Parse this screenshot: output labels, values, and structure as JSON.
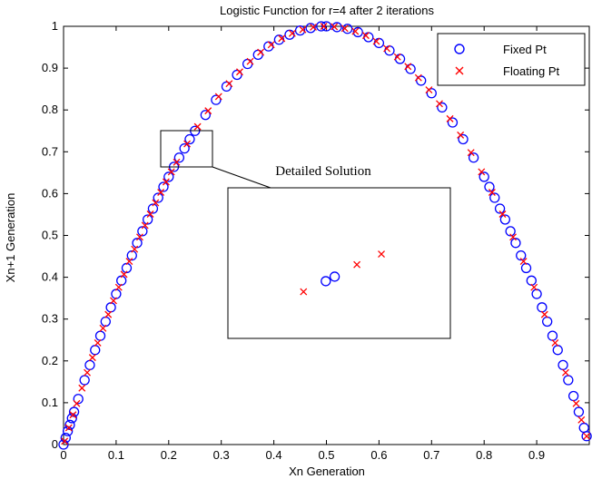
{
  "chart_data": {
    "type": "scatter",
    "title": "Logistic Function for r=4 after 2 iterations",
    "xlabel": "Xn Generation",
    "ylabel": "Xn+1 Generation",
    "xlim": [
      0,
      1
    ],
    "ylim": [
      0,
      1
    ],
    "x_ticks": [
      "0",
      "0.1",
      "0.2",
      "0.3",
      "0.4",
      "0.5",
      "0.6",
      "0.7",
      "0.8",
      "0.9"
    ],
    "y_ticks": [
      "0",
      "0.1",
      "0.2",
      "0.3",
      "0.4",
      "0.5",
      "0.6",
      "0.7",
      "0.8",
      "0.9",
      "1"
    ],
    "legend_position": "top-right",
    "grid": false,
    "series": [
      {
        "name": "Fixed Pt",
        "marker": "circle",
        "color": "#0000ff",
        "x": [
          0.0,
          0.004,
          0.008,
          0.012,
          0.016,
          0.02,
          0.028,
          0.04,
          0.05,
          0.06,
          0.07,
          0.08,
          0.09,
          0.1,
          0.11,
          0.12,
          0.13,
          0.14,
          0.15,
          0.16,
          0.17,
          0.18,
          0.19,
          0.2,
          0.21,
          0.22,
          0.23,
          0.24,
          0.25,
          0.27,
          0.29,
          0.31,
          0.33,
          0.35,
          0.37,
          0.39,
          0.41,
          0.43,
          0.45,
          0.47,
          0.49,
          0.5,
          0.52,
          0.54,
          0.56,
          0.58,
          0.6,
          0.62,
          0.64,
          0.66,
          0.68,
          0.7,
          0.72,
          0.74,
          0.76,
          0.78,
          0.8,
          0.81,
          0.82,
          0.83,
          0.84,
          0.85,
          0.86,
          0.87,
          0.88,
          0.89,
          0.9,
          0.91,
          0.92,
          0.93,
          0.94,
          0.95,
          0.96,
          0.97,
          0.98,
          0.99,
          0.995
        ],
        "y": [
          0.0,
          0.016,
          0.032,
          0.047,
          0.063,
          0.078,
          0.109,
          0.154,
          0.19,
          0.226,
          0.26,
          0.294,
          0.328,
          0.36,
          0.392,
          0.422,
          0.452,
          0.482,
          0.51,
          0.538,
          0.564,
          0.59,
          0.616,
          0.64,
          0.664,
          0.686,
          0.708,
          0.73,
          0.75,
          0.788,
          0.824,
          0.856,
          0.884,
          0.91,
          0.932,
          0.952,
          0.968,
          0.98,
          0.99,
          0.996,
          1.0,
          1.0,
          0.998,
          0.994,
          0.986,
          0.974,
          0.96,
          0.942,
          0.922,
          0.898,
          0.87,
          0.84,
          0.806,
          0.77,
          0.73,
          0.686,
          0.64,
          0.616,
          0.59,
          0.564,
          0.538,
          0.51,
          0.482,
          0.452,
          0.422,
          0.392,
          0.36,
          0.328,
          0.294,
          0.26,
          0.226,
          0.19,
          0.154,
          0.116,
          0.078,
          0.04,
          0.02
        ]
      },
      {
        "name": "Floating Pt",
        "marker": "x",
        "color": "#ff0000",
        "x": [
          0.002,
          0.01,
          0.018,
          0.025,
          0.035,
          0.045,
          0.055,
          0.065,
          0.075,
          0.085,
          0.095,
          0.105,
          0.115,
          0.125,
          0.135,
          0.145,
          0.155,
          0.165,
          0.175,
          0.185,
          0.195,
          0.205,
          0.215,
          0.235,
          0.255,
          0.275,
          0.295,
          0.315,
          0.335,
          0.355,
          0.375,
          0.395,
          0.415,
          0.435,
          0.455,
          0.475,
          0.495,
          0.515,
          0.535,
          0.555,
          0.575,
          0.595,
          0.615,
          0.635,
          0.655,
          0.675,
          0.695,
          0.715,
          0.735,
          0.755,
          0.775,
          0.795,
          0.815,
          0.835,
          0.855,
          0.875,
          0.895,
          0.915,
          0.935,
          0.955,
          0.975,
          0.985,
          0.995
        ],
        "y": [
          0.008,
          0.04,
          0.071,
          0.098,
          0.135,
          0.172,
          0.208,
          0.243,
          0.278,
          0.311,
          0.344,
          0.376,
          0.407,
          0.438,
          0.467,
          0.496,
          0.524,
          0.551,
          0.578,
          0.603,
          0.628,
          0.652,
          0.675,
          0.719,
          0.76,
          0.798,
          0.832,
          0.863,
          0.891,
          0.916,
          0.938,
          0.956,
          0.971,
          0.983,
          0.992,
          0.998,
          1.0,
          0.999,
          0.995,
          0.988,
          0.978,
          0.964,
          0.947,
          0.927,
          0.904,
          0.877,
          0.848,
          0.815,
          0.779,
          0.74,
          0.698,
          0.652,
          0.603,
          0.551,
          0.496,
          0.438,
          0.376,
          0.311,
          0.243,
          0.172,
          0.098,
          0.059,
          0.02
        ]
      }
    ],
    "inset": {
      "title": "Detailed Solution",
      "source_xlim": [
        0.19,
        0.28
      ],
      "source_ylim": [
        0.66,
        0.75
      ],
      "fixed_pt": {
        "x": [
          0.44,
          0.48
        ],
        "y": [
          0.38,
          0.41
        ]
      },
      "floating_pt": {
        "x": [
          0.34,
          0.58,
          0.69
        ],
        "y": [
          0.31,
          0.49,
          0.56
        ]
      }
    }
  }
}
